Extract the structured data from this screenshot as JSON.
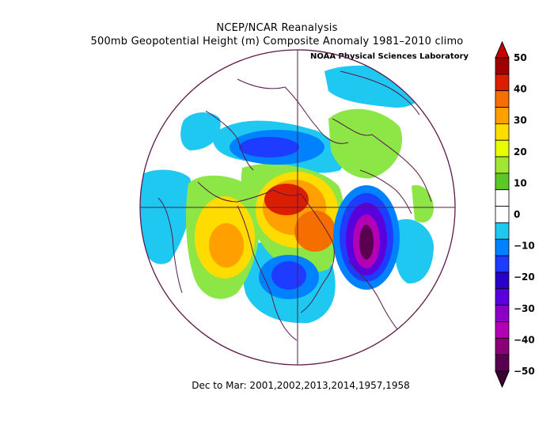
{
  "header": {
    "title": "NCEP/NCAR Reanalysis",
    "subtitle": "500mb Geopotential Height (m) Composite Anomaly 1981–2010 climo",
    "credit": "NOAA Physical Sciences Laboratory"
  },
  "footer": {
    "caption": "Dec to Mar: 2001,2002,2013,2014,1957,1958"
  },
  "colorbar": {
    "levels": [
      "50",
      "40",
      "30",
      "20",
      "10",
      "0",
      "−10",
      "−20",
      "−30",
      "−40",
      "−50"
    ],
    "colors": [
      "#a00000",
      "#dc1e00",
      "#f56e00",
      "#ffa000",
      "#ffdc00",
      "#e6ff00",
      "#a0e632",
      "#5ac828",
      "#ffffff",
      "#ffffff",
      "#1ec8f0",
      "#0082ff",
      "#1e3cff",
      "#2800c8",
      "#5a00dc",
      "#8c00c8",
      "#b400b4",
      "#8c0078",
      "#5a0050"
    ],
    "top_arrow_color": "#c80000",
    "bottom_arrow_color": "#3c0032"
  },
  "map": {
    "projection": "north polar stereographic",
    "line_color": "#5a1a4a"
  }
}
